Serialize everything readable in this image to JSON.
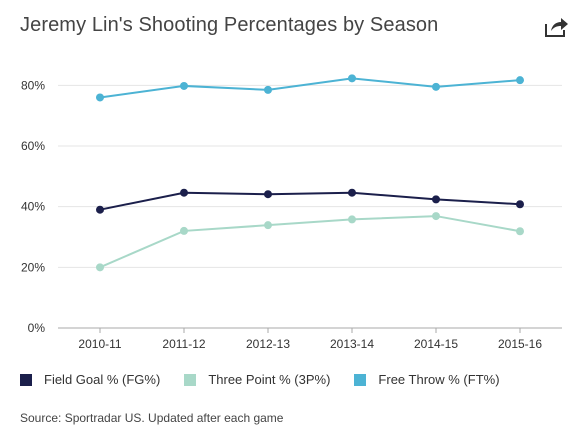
{
  "title": "Jeremy Lin's Shooting Percentages by Season",
  "share_icon": "share-icon",
  "source": "Source: Sportradar US. Updated after each game",
  "colors": {
    "fg": "#1b1f4b",
    "three": "#a8d8c8",
    "ft": "#4cb3d4",
    "grid": "#e5e5e5",
    "axis": "#aaaaaa"
  },
  "chart_data": {
    "type": "line",
    "title": "Jeremy Lin's Shooting Percentages by Season",
    "categories": [
      "2010-11",
      "2011-12",
      "2012-13",
      "2013-14",
      "2014-15",
      "2015-16"
    ],
    "yticks": [
      "0%",
      "20%",
      "40%",
      "60%",
      "80%"
    ],
    "ylim": [
      0,
      90
    ],
    "grid": true,
    "legend_position": "bottom-left",
    "series": [
      {
        "name": "Field Goal % (FG%)",
        "key": "fg",
        "values": [
          39,
          44.6,
          44.1,
          44.6,
          42.4,
          40.8
        ]
      },
      {
        "name": "Three Point % (3P%)",
        "key": "three",
        "values": [
          20,
          32,
          33.9,
          35.8,
          36.9,
          31.9
        ]
      },
      {
        "name": "Free Throw % (FT%)",
        "key": "ft",
        "values": [
          76,
          79.8,
          78.5,
          82.3,
          79.5,
          81.7
        ]
      }
    ]
  }
}
